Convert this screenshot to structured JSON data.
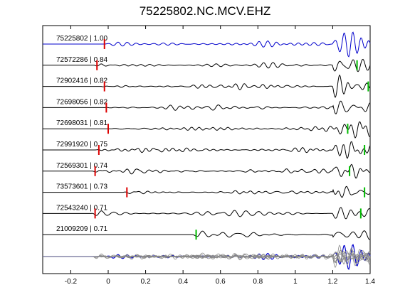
{
  "chart_data": {
    "type": "line",
    "title": "75225802.NC.MCV.EHZ",
    "xlim": [
      -0.35,
      1.4
    ],
    "xticks": [
      -0.2,
      0,
      0.2,
      0.4,
      0.6,
      0.8,
      1,
      1.2,
      1.4
    ],
    "xtick_labels": [
      "-0.2",
      "0",
      "0.2",
      "0.4",
      "0.6",
      "0.8",
      "1",
      "1.2",
      "1.4"
    ],
    "grid": false,
    "legend": "none",
    "colors": {
      "reference": "#0000cc",
      "trace": "#000000",
      "stack": "#888888",
      "pick_red": "#dd0000",
      "pick_green": "#00bb00"
    },
    "traces": [
      {
        "label": "75225802 | 1.00",
        "red_pick": -0.02,
        "green_pick": null,
        "seed": 1,
        "ref": true
      },
      {
        "label": "72572286 | 0.84",
        "red_pick": -0.06,
        "green_pick": 1.33,
        "seed": 2
      },
      {
        "label": "72902416 | 0.82",
        "red_pick": -0.02,
        "green_pick": 1.39,
        "seed": 3
      },
      {
        "label": "72698056 | 0.82",
        "red_pick": -0.01,
        "green_pick": null,
        "seed": 4
      },
      {
        "label": "72698031 | 0.81",
        "red_pick": 0.0,
        "green_pick": 1.28,
        "seed": 5
      },
      {
        "label": "72991920 | 0.75",
        "red_pick": -0.05,
        "green_pick": 1.37,
        "seed": 6
      },
      {
        "label": "72569301 | 0.74",
        "red_pick": -0.07,
        "green_pick": 1.29,
        "seed": 7
      },
      {
        "label": "73573601 | 0.73",
        "red_pick": 0.1,
        "green_pick": 1.37,
        "seed": 8
      },
      {
        "label": "72543240 | 0.71",
        "red_pick": -0.07,
        "green_pick": 1.35,
        "seed": 9
      },
      {
        "label": "21009209 | 0.71",
        "red_pick": null,
        "green_pick": 0.47,
        "seed": 10
      }
    ]
  }
}
